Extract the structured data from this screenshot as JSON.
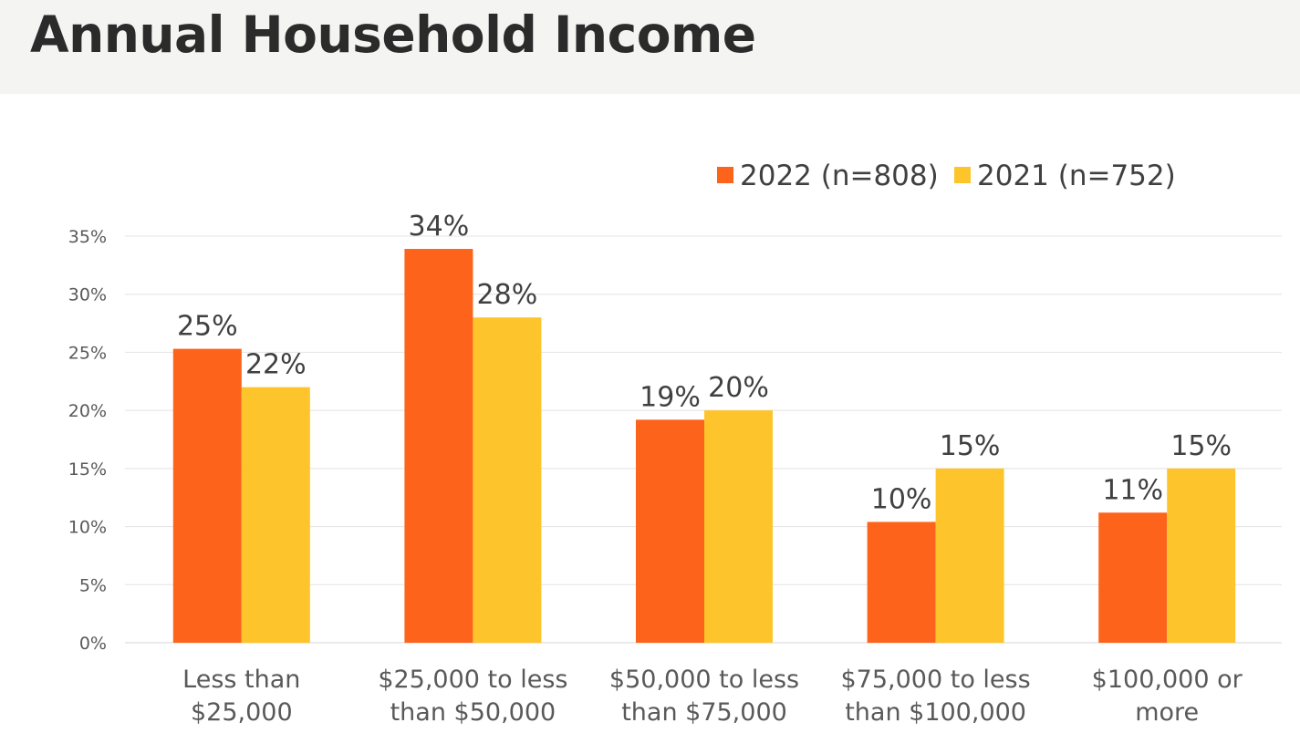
{
  "page": {
    "title": "Annual Household Income"
  },
  "chart_data": {
    "type": "bar",
    "title": "Annual Household Income",
    "xlabel": "",
    "ylabel": "",
    "ylim": [
      0,
      35
    ],
    "yticks": [
      "0%",
      "5%",
      "10%",
      "15%",
      "20%",
      "25%",
      "30%",
      "35%"
    ],
    "ytick_values": [
      0,
      5,
      10,
      15,
      20,
      25,
      30,
      35
    ],
    "grid": true,
    "legend_position": "top-right",
    "categories": [
      [
        "Less than",
        "$25,000"
      ],
      [
        "$25,000 to less",
        "than $50,000"
      ],
      [
        "$50,000 to less",
        "than $75,000"
      ],
      [
        "$75,000 to less",
        "than $100,000"
      ],
      [
        "$100,000 or",
        "more"
      ]
    ],
    "series": [
      {
        "name": "2022 (n=808)",
        "color": "#fe631b",
        "values": [
          25.3,
          33.9,
          19.2,
          10.4,
          11.2
        ],
        "labels": [
          "25%",
          "34%",
          "19%",
          "10%",
          "11%"
        ]
      },
      {
        "name": "2021 (n=752)",
        "color": "#fec42c",
        "values": [
          22,
          28,
          20,
          15,
          15
        ],
        "labels": [
          "22%",
          "28%",
          "20%",
          "15%",
          "15%"
        ]
      }
    ]
  }
}
